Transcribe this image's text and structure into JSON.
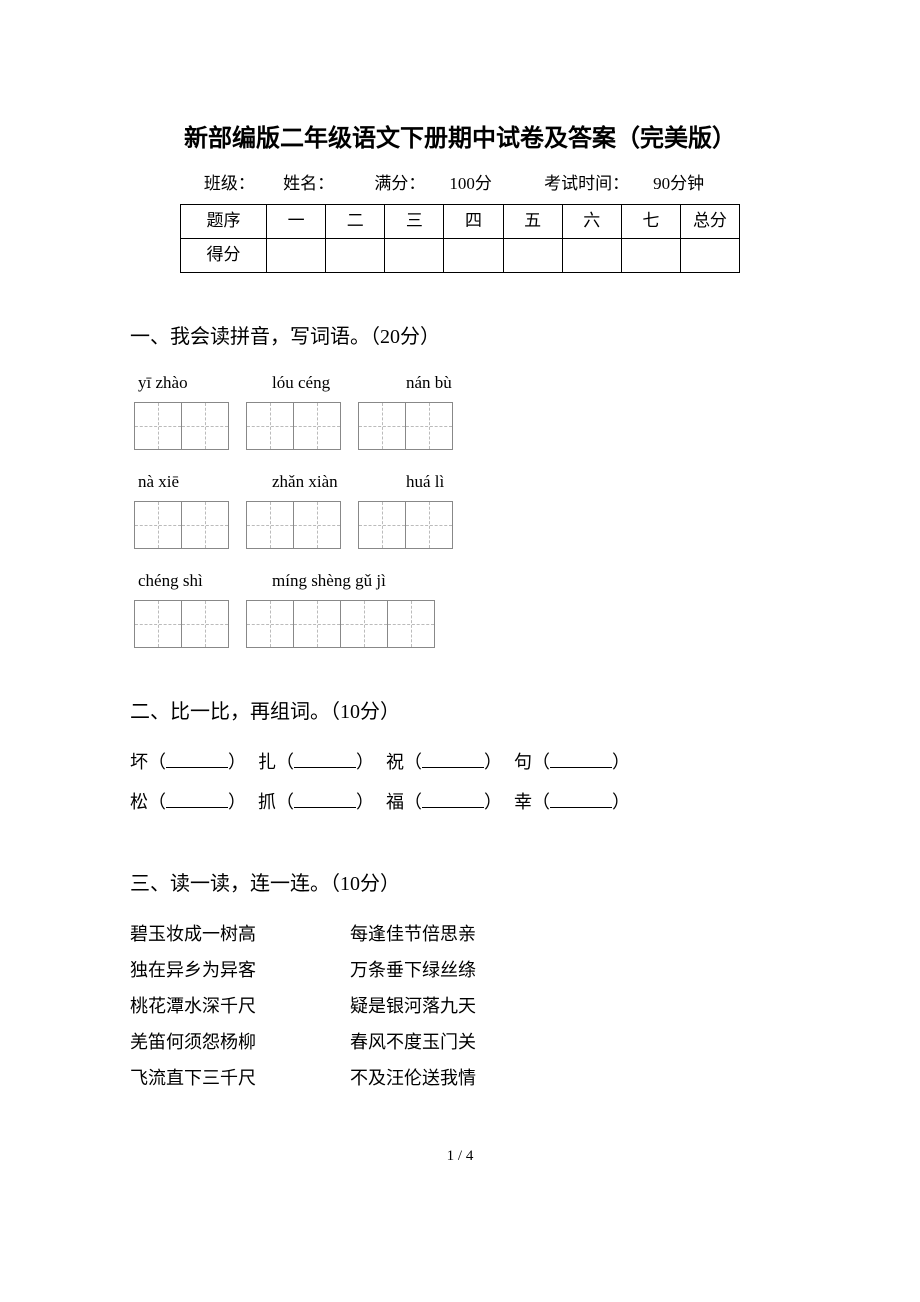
{
  "title": "新部编版二年级语文下册期中试卷及答案（完美版）",
  "meta": {
    "class_label": "班级：",
    "name_label": "姓名：",
    "full_score_label": "满分：",
    "full_score_value": "100分",
    "time_label": "考试时间：",
    "time_value": "90分钟"
  },
  "score_table": {
    "row_label_1": "题序",
    "row_label_2": "得分",
    "cols": [
      "一",
      "二",
      "三",
      "四",
      "五",
      "六",
      "七",
      "总分"
    ]
  },
  "section1": {
    "heading": "一、我会读拼音，写词语。（20分）",
    "rows": [
      {
        "pinyin": [
          "yī zhào",
          "lóu céng",
          "nán bù"
        ],
        "box_counts": [
          2,
          2,
          2
        ]
      },
      {
        "pinyin": [
          "nà xiē",
          "zhǎn xiàn",
          "huá lì"
        ],
        "box_counts": [
          2,
          2,
          2
        ]
      },
      {
        "pinyin": [
          "chéng shì",
          "míng shèng gǔ jì"
        ],
        "box_counts": [
          2,
          4
        ]
      }
    ]
  },
  "section2": {
    "heading": "二、比一比，再组词。（10分）",
    "lines": [
      [
        "坏",
        "扎",
        "祝",
        "句"
      ],
      [
        "松",
        "抓",
        "福",
        "幸"
      ]
    ]
  },
  "section3": {
    "heading": "三、读一读，连一连。（10分）",
    "pairs": [
      {
        "left": "碧玉妆成一树高",
        "right": "每逢佳节倍思亲"
      },
      {
        "left": "独在异乡为异客",
        "right": "万条垂下绿丝绦"
      },
      {
        "left": "桃花潭水深千尺",
        "right": "疑是银河落九天"
      },
      {
        "left": "羌笛何须怨杨柳",
        "right": "春风不度玉门关"
      },
      {
        "left": "飞流直下三千尺",
        "right": "不及汪伦送我情"
      }
    ]
  },
  "page_num": "1 / 4"
}
